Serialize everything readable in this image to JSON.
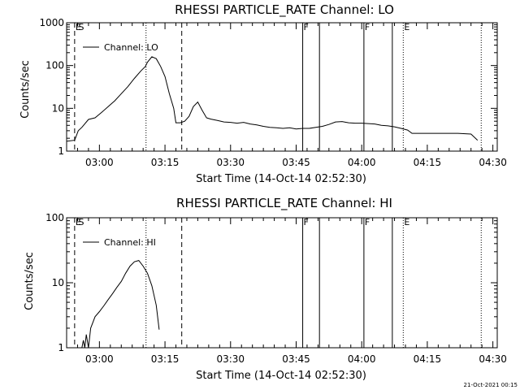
{
  "footer": {
    "date_stamp": "21-Oct-2021 00:15"
  },
  "chart_data": [
    {
      "type": "line",
      "title": "RHESSI PARTICLE_RATE Channel: LO",
      "xlabel": "Start Time (14-Oct-14 02:52:30)",
      "ylabel": "Counts/sec",
      "x_unit": "time HH:MM (14-Oct-14)",
      "x_range": [
        "02:52:30",
        "04:31:00"
      ],
      "x_ticks": [
        "03:00",
        "03:15",
        "03:30",
        "03:45",
        "04:00",
        "04:15",
        "04:30"
      ],
      "y_scale": "log",
      "ylim": [
        1,
        1000
      ],
      "y_ticks": [
        "1",
        "10",
        "100",
        "1000"
      ],
      "legend": {
        "label": "Channel: LO",
        "placement": "top-left"
      },
      "grid": false,
      "series": [
        {
          "name": "Channel: LO",
          "points": [
            [
              "02:52:30",
              1.7
            ],
            [
              "02:54:20",
              1.8
            ],
            [
              "02:55:10",
              3.0
            ],
            [
              "02:56:00",
              3.6
            ],
            [
              "02:57:30",
              5.5
            ],
            [
              "02:59:00",
              6.0
            ],
            [
              "03:00:30",
              8.0
            ],
            [
              "03:02:00",
              11
            ],
            [
              "03:03:30",
              15
            ],
            [
              "03:05:00",
              22
            ],
            [
              "03:06:30",
              32
            ],
            [
              "03:08:00",
              50
            ],
            [
              "03:09:30",
              75
            ],
            [
              "03:10:30",
              95
            ],
            [
              "03:11:00",
              120
            ],
            [
              "03:12:00",
              160
            ],
            [
              "03:13:00",
              145
            ],
            [
              "03:14:00",
              95
            ],
            [
              "03:15:00",
              55
            ],
            [
              "03:16:00",
              22
            ],
            [
              "03:17:00",
              10
            ],
            [
              "03:17:30",
              4.6
            ],
            [
              "03:18:30",
              4.6
            ],
            [
              "03:19:30",
              5.0
            ],
            [
              "03:20:30",
              6.5
            ],
            [
              "03:21:30",
              11
            ],
            [
              "03:22:30",
              14
            ],
            [
              "03:23:30",
              9
            ],
            [
              "03:24:30",
              6.0
            ],
            [
              "03:25:30",
              5.6
            ],
            [
              "03:27:00",
              5.2
            ],
            [
              "03:28:30",
              4.8
            ],
            [
              "03:30:00",
              4.7
            ],
            [
              "03:31:30",
              4.5
            ],
            [
              "03:33:00",
              4.7
            ],
            [
              "03:34:30",
              4.3
            ],
            [
              "03:36:00",
              4.1
            ],
            [
              "03:37:30",
              3.8
            ],
            [
              "03:39:00",
              3.6
            ],
            [
              "03:40:30",
              3.5
            ],
            [
              "03:42:00",
              3.4
            ],
            [
              "03:43:30",
              3.5
            ],
            [
              "03:45:00",
              3.3
            ],
            [
              "03:46:30",
              3.4
            ],
            [
              "03:48:00",
              3.4
            ],
            [
              "03:49:30",
              3.6
            ],
            [
              "03:51:00",
              3.8
            ],
            [
              "03:52:30",
              4.2
            ],
            [
              "03:54:00",
              4.8
            ],
            [
              "03:55:30",
              4.9
            ],
            [
              "03:57:00",
              4.6
            ],
            [
              "03:58:30",
              4.5
            ],
            [
              "04:00:00",
              4.5
            ],
            [
              "04:01:30",
              4.4
            ],
            [
              "04:03:00",
              4.3
            ],
            [
              "04:04:30",
              4.0
            ],
            [
              "04:06:00",
              3.9
            ],
            [
              "04:07:30",
              3.7
            ],
            [
              "04:09:00",
              3.4
            ],
            [
              "04:10:30",
              3.1
            ],
            [
              "04:11:30",
              2.6
            ],
            [
              "04:13:00",
              2.6
            ],
            [
              "04:16:00",
              2.6
            ],
            [
              "04:19:00",
              2.6
            ],
            [
              "04:22:00",
              2.6
            ],
            [
              "04:25:00",
              2.5
            ],
            [
              "04:26:30",
              1.8
            ]
          ]
        }
      ],
      "annotations": [
        {
          "text": "E",
          "time": "02:54:20"
        },
        {
          "text": "S",
          "time": "02:55:00"
        },
        {
          "text": "F",
          "time": "03:46:30"
        },
        {
          "text": "F",
          "time": "04:00:30"
        },
        {
          "text": "E",
          "time": "04:09:30"
        }
      ],
      "markers": [
        {
          "style": "dashed",
          "time": "02:54:20"
        },
        {
          "style": "dotted",
          "time": "03:10:40"
        },
        {
          "style": "dashed",
          "time": "03:18:50"
        },
        {
          "style": "solid",
          "time": "03:46:30"
        },
        {
          "style": "solid",
          "time": "03:50:20"
        },
        {
          "style": "solid",
          "time": "04:00:30"
        },
        {
          "style": "solid",
          "time": "04:07:00"
        },
        {
          "style": "dotted",
          "time": "04:09:30"
        },
        {
          "style": "dotted",
          "time": "04:27:20"
        }
      ]
    },
    {
      "type": "line",
      "title": "RHESSI PARTICLE_RATE Channel: HI",
      "xlabel": "Start Time (14-Oct-14 02:52:30)",
      "ylabel": "Counts/sec",
      "x_unit": "time HH:MM (14-Oct-14)",
      "x_range": [
        "02:52:30",
        "04:31:00"
      ],
      "x_ticks": [
        "03:00",
        "03:15",
        "03:30",
        "03:45",
        "04:00",
        "04:15",
        "04:30"
      ],
      "y_scale": "log",
      "ylim": [
        1,
        100
      ],
      "y_ticks": [
        "1",
        "10",
        "100"
      ],
      "legend": {
        "label": "Channel: HI",
        "placement": "top-left"
      },
      "grid": false,
      "series": [
        {
          "name": "Channel: HI",
          "points": [
            [
              "02:56:00",
              1.0
            ],
            [
              "02:56:20",
              1.3
            ],
            [
              "02:56:40",
              1.0
            ],
            [
              "02:57:00",
              1.6
            ],
            [
              "02:57:30",
              1.0
            ],
            [
              "02:58:00",
              2.0
            ],
            [
              "02:59:00",
              3.0
            ],
            [
              "03:00:00",
              3.6
            ],
            [
              "03:01:00",
              4.4
            ],
            [
              "03:02:00",
              5.5
            ],
            [
              "03:03:00",
              6.8
            ],
            [
              "03:04:00",
              8.5
            ],
            [
              "03:05:00",
              10.5
            ],
            [
              "03:06:00",
              14
            ],
            [
              "03:07:00",
              18
            ],
            [
              "03:08:00",
              21
            ],
            [
              "03:09:00",
              22
            ],
            [
              "03:10:00",
              18
            ],
            [
              "03:11:00",
              14
            ],
            [
              "03:12:00",
              9
            ],
            [
              "03:13:00",
              4.5
            ],
            [
              "03:13:40",
              1.9
            ]
          ]
        }
      ],
      "annotations": [
        {
          "text": "E",
          "time": "02:54:20"
        },
        {
          "text": "S",
          "time": "02:55:00"
        },
        {
          "text": "F",
          "time": "03:46:30"
        },
        {
          "text": "F",
          "time": "04:00:30"
        },
        {
          "text": "E",
          "time": "04:09:30"
        }
      ],
      "markers": [
        {
          "style": "dashed",
          "time": "02:54:20"
        },
        {
          "style": "dotted",
          "time": "03:10:40"
        },
        {
          "style": "dashed",
          "time": "03:18:50"
        },
        {
          "style": "solid",
          "time": "03:46:30"
        },
        {
          "style": "solid",
          "time": "03:50:20"
        },
        {
          "style": "solid",
          "time": "04:00:30"
        },
        {
          "style": "solid",
          "time": "04:07:00"
        },
        {
          "style": "dotted",
          "time": "04:09:30"
        },
        {
          "style": "dotted",
          "time": "04:27:20"
        }
      ]
    }
  ]
}
